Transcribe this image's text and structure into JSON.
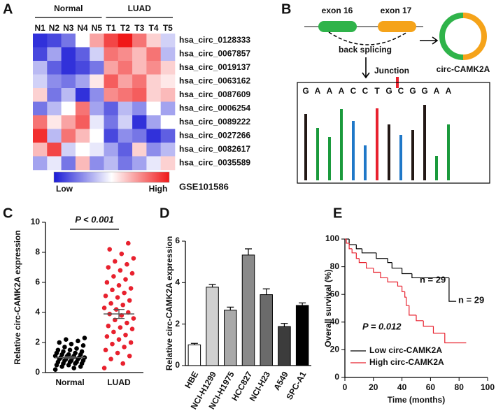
{
  "panel_labels": [
    "A",
    "B",
    "C",
    "D",
    "E"
  ],
  "diagram": {
    "exon_left": "exon 16",
    "exon_right": "exon 17",
    "splice": "back splicing",
    "circ_name": "circ-CAMK2A",
    "junction": "Junction",
    "sequence": [
      "G",
      "A",
      "A",
      "A",
      "C",
      "C",
      "T",
      "G",
      "C",
      "G",
      "G",
      "A",
      "A"
    ]
  },
  "chart_data": [
    {
      "type": "heatmap",
      "columns": [
        "N1",
        "N2",
        "N3",
        "N4",
        "N5",
        "T1",
        "T2",
        "T3",
        "T4",
        "T5"
      ],
      "groups": [
        {
          "label": "Normal",
          "count": 5
        },
        {
          "label": "LUAD",
          "count": 5
        }
      ],
      "rows": [
        "hsa_circ_0128333",
        "hsa_circ_0067857",
        "hsa_circ_0019137",
        "hsa_circ_0063162",
        "hsa_circ_0087609",
        "hsa_circ_0006254",
        "hsa_circ_0089222",
        "hsa_circ_0027266",
        "hsa_circ_0082617",
        "hsa_circ_0035589"
      ],
      "values": [
        [
          -0.9,
          -0.8,
          -0.6,
          0.0,
          0.4,
          0.8,
          1.0,
          0.6,
          0.2,
          -0.2
        ],
        [
          -0.8,
          -0.4,
          -0.9,
          -0.7,
          -0.2,
          0.6,
          0.5,
          0.3,
          0.6,
          -0.3
        ],
        [
          -0.3,
          -0.7,
          -0.9,
          -0.8,
          -0.6,
          0.4,
          0.6,
          0.3,
          0.5,
          0.2
        ],
        [
          -0.2,
          -0.5,
          -0.6,
          -0.4,
          0.1,
          0.7,
          0.4,
          0.6,
          0.2,
          0.1
        ],
        [
          0.2,
          -0.6,
          -0.3,
          -0.9,
          -0.5,
          0.5,
          0.6,
          0.7,
          0.2,
          0.3
        ],
        [
          -0.6,
          -0.3,
          0.0,
          0.6,
          -0.4,
          -0.7,
          -0.3,
          -0.5,
          0.0,
          -0.4
        ],
        [
          0.6,
          0.1,
          0.4,
          0.7,
          -0.1,
          -0.6,
          -0.2,
          -0.9,
          -0.4,
          0.0
        ],
        [
          0.9,
          -0.3,
          0.6,
          0.3,
          0.0,
          -0.8,
          -0.5,
          -0.6,
          -0.9,
          -0.7
        ],
        [
          0.3,
          0.8,
          -0.2,
          0.0,
          -0.1,
          -0.4,
          -0.7,
          0.2,
          -0.5,
          -0.3
        ],
        [
          -0.4,
          -0.1,
          -0.6,
          0.3,
          -0.5,
          -0.3,
          -0.6,
          -0.4,
          -0.1,
          0.2
        ]
      ],
      "zlim": [
        -1,
        1
      ],
      "colors": [
        "#1a1ad6",
        "#ffffff",
        "#f01818"
      ],
      "highlight_row": 0,
      "highlight_color": "#e8212e",
      "colorbar_low": "Low",
      "colorbar_high": "High",
      "dataset": "GSE101586"
    },
    {
      "type": "strip",
      "ylabel": "Relative circ-CAMK2A expression",
      "categories": [
        "Normal",
        "LUAD"
      ],
      "series": [
        {
          "color": "#000000",
          "values": [
            0.2,
            0.3,
            0.4,
            0.4,
            0.5,
            0.5,
            0.6,
            0.6,
            0.6,
            0.7,
            0.7,
            0.7,
            0.8,
            0.8,
            0.8,
            0.9,
            0.9,
            0.9,
            1.0,
            1.0,
            1.0,
            1.0,
            1.1,
            1.1,
            1.1,
            1.2,
            1.2,
            1.2,
            1.3,
            1.3,
            1.4,
            1.4,
            1.5,
            1.5,
            1.6,
            1.7,
            1.8,
            1.9,
            2.0,
            2.1,
            2.2,
            2.3
          ]
        },
        {
          "color": "#e8212e",
          "values": [
            0.3,
            0.6,
            0.9,
            1.1,
            1.3,
            1.5,
            1.7,
            1.9,
            2.0,
            2.2,
            2.4,
            2.5,
            2.7,
            2.9,
            3.0,
            3.1,
            3.3,
            3.5,
            3.6,
            3.8,
            3.9,
            4.0,
            4.2,
            4.3,
            4.5,
            4.6,
            4.8,
            5.0,
            5.1,
            5.3,
            5.5,
            5.6,
            5.8,
            6.0,
            6.2,
            6.4,
            6.6,
            6.8,
            7.0,
            7.2,
            7.4,
            7.6,
            7.9,
            8.2,
            8.6
          ]
        }
      ],
      "means": [
        1.0,
        3.9
      ],
      "errors": [
        0.07,
        0.3
      ],
      "annotation": "P < 0.001",
      "ylim": [
        0,
        10
      ],
      "yticks": [
        0,
        2,
        4,
        6,
        8,
        10
      ]
    },
    {
      "type": "bar",
      "ylabel": "Relative circ-CAMK2A expression",
      "categories": [
        "HBE",
        "NCI-H1299",
        "NCI-H1975",
        "HCC827",
        "NCI-H23",
        "A549",
        "SPC-A1"
      ],
      "values": [
        1.0,
        3.78,
        2.67,
        5.33,
        3.42,
        1.88,
        2.9
      ],
      "errors": [
        0.07,
        0.13,
        0.15,
        0.3,
        0.28,
        0.15,
        0.12
      ],
      "colors": [
        "#ffffff",
        "#d0d0d0",
        "#a9a9a9",
        "#8a8a8a",
        "#6b6b6b",
        "#3c3c3c",
        "#000000"
      ],
      "ylim": [
        0,
        6
      ],
      "yticks": [
        0,
        2,
        4,
        6
      ]
    },
    {
      "type": "survival",
      "xlabel": "Time (months)",
      "ylabel": "Overall survival (%)",
      "series": [
        {
          "name": "Low circ-CAMK2A",
          "color": "#000000",
          "x": [
            0,
            3,
            8,
            12,
            22,
            30,
            33,
            40,
            47,
            73,
            78
          ],
          "values": [
            100,
            96,
            93,
            90,
            86,
            83,
            79,
            75,
            72,
            55,
            55
          ]
        },
        {
          "name": "High circ-CAMK2A",
          "color": "#e8212e",
          "x": [
            0,
            1,
            3,
            5,
            8,
            10,
            15,
            20,
            25,
            30,
            37,
            40,
            42,
            43,
            45,
            50,
            55,
            62,
            70,
            85
          ],
          "values": [
            100,
            97,
            93,
            90,
            86,
            83,
            79,
            76,
            72,
            69,
            66,
            62,
            58,
            52,
            45,
            41,
            37,
            32,
            25,
            25
          ]
        }
      ],
      "annotations": [
        "n = 29",
        "n = 29",
        "P = 0.012"
      ],
      "xlim": [
        0,
        100
      ],
      "xticks": [
        0,
        20,
        40,
        60,
        80,
        100
      ],
      "ylim": [
        0,
        100
      ],
      "yticks": [
        0,
        20,
        40,
        60,
        80,
        100
      ],
      "legend": "lower left"
    }
  ]
}
